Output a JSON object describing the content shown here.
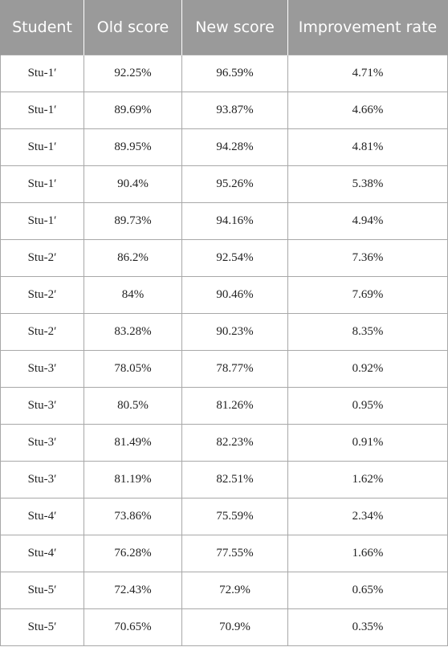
{
  "table": {
    "headers": [
      "Student",
      "Old score",
      "New score",
      "Improvement rate"
    ],
    "rows": [
      [
        "Stu-1′",
        "92.25%",
        "96.59%",
        "4.71%"
      ],
      [
        "Stu-1′",
        "89.69%",
        "93.87%",
        "4.66%"
      ],
      [
        "Stu-1′",
        "89.95%",
        "94.28%",
        "4.81%"
      ],
      [
        "Stu-1′",
        "90.4%",
        "95.26%",
        "5.38%"
      ],
      [
        "Stu-1′",
        "89.73%",
        "94.16%",
        "4.94%"
      ],
      [
        "Stu-2′",
        "86.2%",
        "92.54%",
        "7.36%"
      ],
      [
        "Stu-2′",
        "84%",
        "90.46%",
        "7.69%"
      ],
      [
        "Stu-2′",
        "83.28%",
        "90.23%",
        "8.35%"
      ],
      [
        "Stu-3′",
        "78.05%",
        "78.77%",
        "0.92%"
      ],
      [
        "Stu-3′",
        "80.5%",
        "81.26%",
        "0.95%"
      ],
      [
        "Stu-3′",
        "81.49%",
        "82.23%",
        "0.91%"
      ],
      [
        "Stu-3′",
        "81.19%",
        "82.51%",
        "1.62%"
      ],
      [
        "Stu-4′",
        "73.86%",
        "75.59%",
        "2.34%"
      ],
      [
        "Stu-4′",
        "76.28%",
        "77.55%",
        "1.66%"
      ],
      [
        "Stu-5′",
        "72.43%",
        "72.9%",
        "0.65%"
      ],
      [
        "Stu-5′",
        "70.65%",
        "70.9%",
        "0.35%"
      ]
    ]
  }
}
